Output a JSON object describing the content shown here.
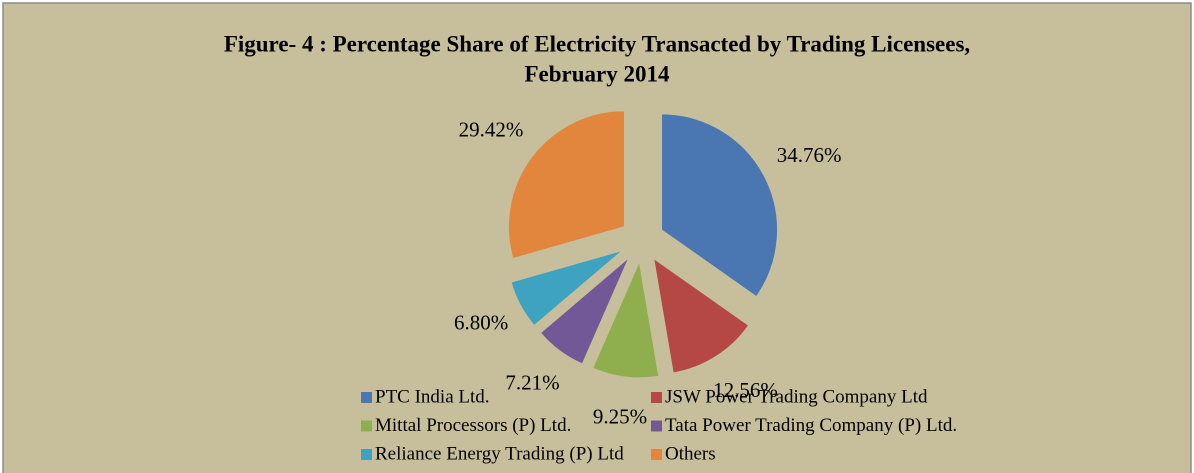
{
  "chart_data": {
    "type": "pie",
    "title": "Figure- 4 : Percentage Share of Electricity Transacted by Trading Licensees,",
    "subtitle": "February 2014",
    "categories": [
      "PTC India Ltd.",
      "JSW Power Trading Company Ltd",
      "Mittal Processors (P) Ltd.",
      "Tata Power Trading Company (P) Ltd.",
      "Reliance Energy Trading (P) Ltd",
      "Others"
    ],
    "values": [
      34.76,
      12.56,
      9.25,
      7.21,
      6.8,
      29.42
    ],
    "value_labels": [
      "34.76%",
      "12.56%",
      "9.25%",
      "7.21%",
      "6.80%",
      "29.42%"
    ],
    "colors": [
      "#4a77b2",
      "#b54744",
      "#8fae4e",
      "#735898",
      "#3ea3c0",
      "#e2853d"
    ],
    "legend": "bottom"
  }
}
